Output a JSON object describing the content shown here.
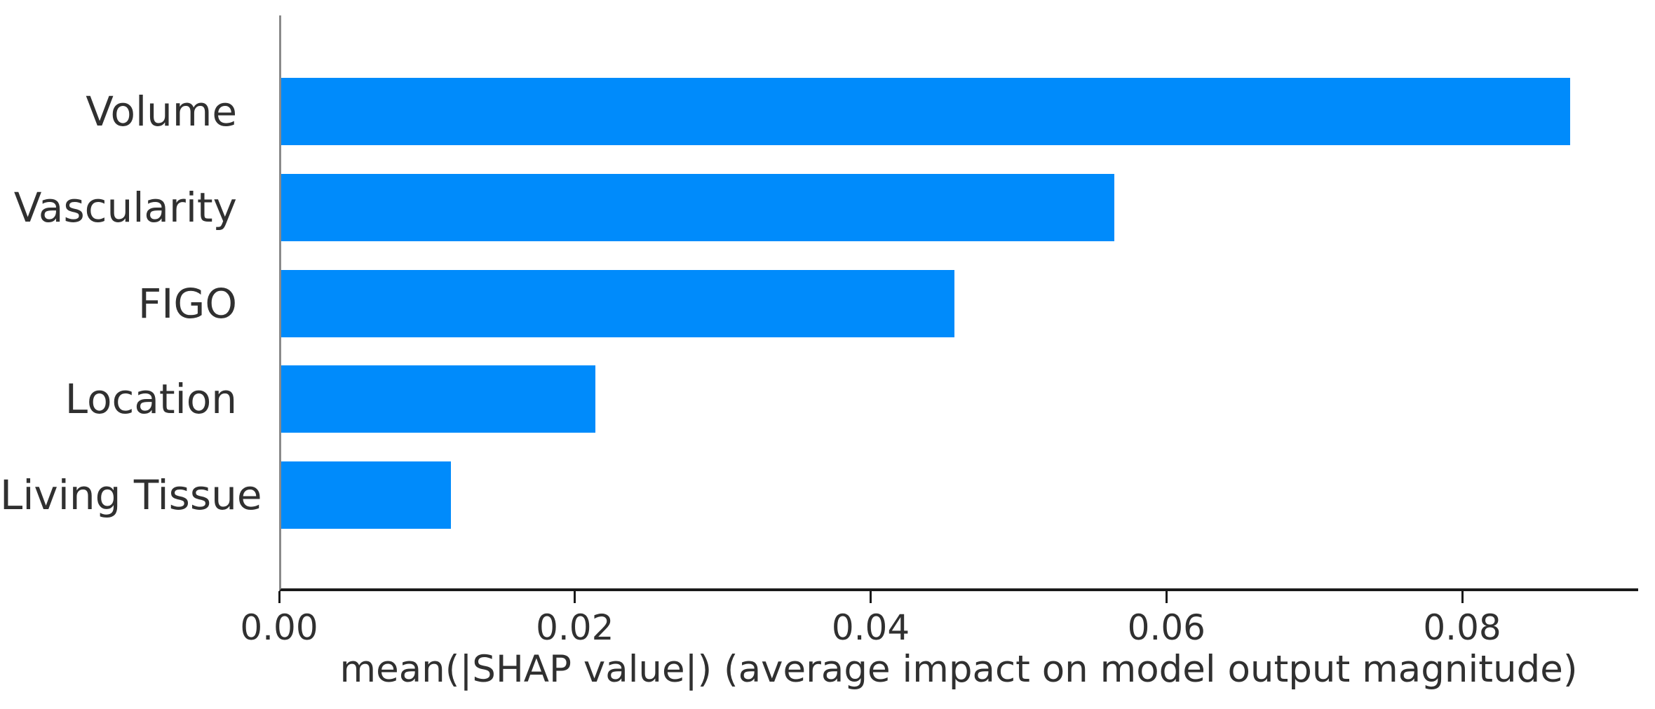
{
  "chart_data": {
    "type": "bar",
    "orientation": "horizontal",
    "title": "",
    "xlabel": "mean(|SHAP value|) (average impact on model output magnitude)",
    "ylabel": "",
    "categories": [
      "Volume",
      "Vascularity",
      "FIGO",
      "Location",
      "Living Tissue"
    ],
    "values": [
      0.0873,
      0.0564,
      0.0456,
      0.0213,
      0.0115
    ],
    "xlim": [
      0,
      0.0919
    ],
    "xticks": [
      0.0,
      0.02,
      0.04,
      0.06,
      0.08
    ],
    "xtick_labels": [
      "0.00",
      "0.02",
      "0.04",
      "0.06",
      "0.08"
    ],
    "bar_color": "#008bfb",
    "axis_spine_color": "#8a8a8a",
    "axis_line_color": "#1a1a1a",
    "text_color": "#303030",
    "grid": false,
    "legend_position": "none"
  }
}
